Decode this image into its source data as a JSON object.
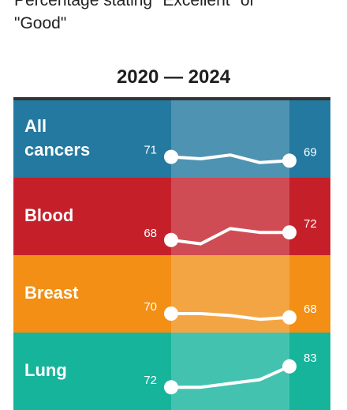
{
  "subtitle": "Percentage stating \"Excellent\" or\n\"Good\"",
  "chart_data": {
    "type": "line",
    "period_label": "2020 — 2024",
    "series": [
      {
        "name": "All\ncancers",
        "values": [
          71,
          70,
          72,
          68,
          69
        ],
        "color": "#23799f"
      },
      {
        "name": "Blood",
        "values": [
          68,
          66,
          74,
          72,
          72
        ],
        "color": "#c5202a"
      },
      {
        "name": "Breast",
        "values": [
          70,
          70,
          69,
          67,
          68
        ],
        "color": "#f28f14"
      },
      {
        "name": "Lung",
        "values": [
          72,
          72,
          74,
          76,
          83
        ],
        "color": "#15b49b"
      }
    ]
  }
}
